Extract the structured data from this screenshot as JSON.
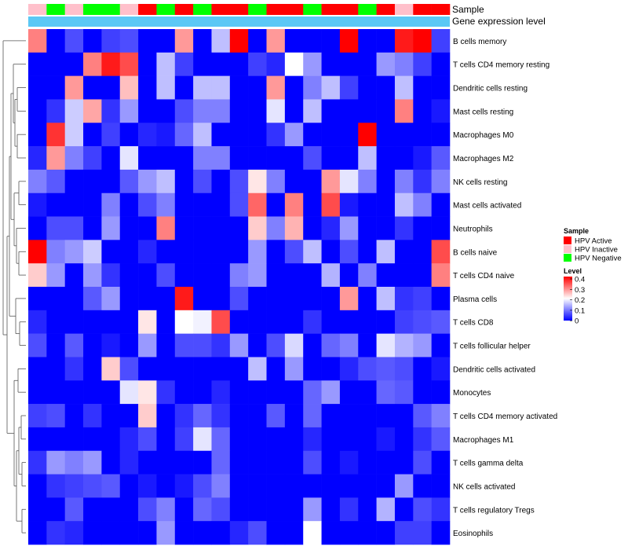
{
  "chart_data": {
    "type": "heatmap",
    "value_scale": {
      "min": 0,
      "mid": 0.2,
      "max": 0.4,
      "low_color": "#0000ff",
      "mid_color": "#ffffff",
      "high_color": "#ff0000"
    },
    "annotation_labels": [
      "Sample",
      "Gene expression level"
    ],
    "legend": {
      "sample_title": "Sample",
      "sample_items": [
        {
          "label": "HPV Active",
          "color": "#ff0000"
        },
        {
          "label": "HPV Inactive",
          "color": "#ffc0cb"
        },
        {
          "label": "HPV Negative",
          "color": "#00ff00"
        }
      ],
      "level_title": "Level",
      "level_ticks": [
        "0.4",
        "0.3",
        "0.2",
        "0.1",
        "0"
      ]
    },
    "sample_groups": [
      "HPV Inactive",
      "HPV Negative",
      "HPV Inactive",
      "HPV Negative",
      "HPV Negative",
      "HPV Inactive",
      "HPV Active",
      "HPV Negative",
      "HPV Active",
      "HPV Negative",
      "HPV Active",
      "HPV Active",
      "HPV Negative",
      "HPV Active",
      "HPV Active",
      "HPV Negative",
      "HPV Active",
      "HPV Active",
      "HPV Negative",
      "HPV Active",
      "HPV Inactive",
      "HPV Active",
      "HPV Active"
    ],
    "gene_expression_color": "#5bc8f5",
    "rows": [
      {
        "name": "B cells memory",
        "values": [
          0.3,
          0.0,
          0.06,
          0.0,
          0.05,
          0.06,
          0.0,
          0.0,
          0.28,
          0.0,
          0.15,
          0.4,
          0.0,
          0.28,
          0.0,
          0.0,
          0.0,
          0.4,
          0.0,
          0.0,
          0.38,
          0.4,
          0.05
        ]
      },
      {
        "name": "T cells CD4 memory resting",
        "values": [
          0.0,
          0.0,
          0.0,
          0.3,
          0.38,
          0.34,
          0.0,
          0.15,
          0.05,
          0.0,
          0.0,
          0.0,
          0.05,
          0.03,
          0.2,
          0.12,
          0.0,
          0.0,
          0.0,
          0.12,
          0.1,
          0.05,
          0.0
        ]
      },
      {
        "name": "Dendritic cells resting",
        "values": [
          0.0,
          0.0,
          0.28,
          0.0,
          0.0,
          0.25,
          0.0,
          0.15,
          0.0,
          0.15,
          0.15,
          0.0,
          0.0,
          0.28,
          0.0,
          0.1,
          0.15,
          0.05,
          0.0,
          0.0,
          0.15,
          0.0,
          0.0
        ]
      },
      {
        "name": "Mast cells resting",
        "values": [
          0.0,
          0.04,
          0.16,
          0.27,
          0.04,
          0.12,
          0.0,
          0.0,
          0.06,
          0.1,
          0.1,
          0.0,
          0.0,
          0.18,
          0.0,
          0.15,
          0.0,
          0.0,
          0.0,
          0.0,
          0.3,
          0.0,
          0.02
        ]
      },
      {
        "name": "Macrophages M0",
        "values": [
          0.0,
          0.36,
          0.16,
          0.0,
          0.05,
          0.0,
          0.03,
          0.02,
          0.08,
          0.15,
          0.0,
          0.0,
          0.0,
          0.04,
          0.12,
          0.0,
          0.0,
          0.0,
          0.4,
          0.0,
          0.0,
          0.0,
          0.0
        ]
      },
      {
        "name": "Macrophages M2",
        "values": [
          0.03,
          0.28,
          0.1,
          0.05,
          0.0,
          0.18,
          0.0,
          0.0,
          0.0,
          0.1,
          0.1,
          0.0,
          0.0,
          0.0,
          0.0,
          0.06,
          0.0,
          0.0,
          0.15,
          0.0,
          0.0,
          0.02,
          0.07
        ]
      },
      {
        "name": "NK cells resting",
        "values": [
          0.1,
          0.07,
          0.0,
          0.0,
          0.0,
          0.07,
          0.12,
          0.15,
          0.0,
          0.06,
          0.0,
          0.06,
          0.22,
          0.1,
          0.0,
          0.0,
          0.28,
          0.18,
          0.1,
          0.0,
          0.1,
          0.04,
          0.1
        ]
      },
      {
        "name": "Mast cells activated",
        "values": [
          0.02,
          0.0,
          0.0,
          0.0,
          0.1,
          0.0,
          0.06,
          0.1,
          0.0,
          0.0,
          0.0,
          0.06,
          0.32,
          0.0,
          0.3,
          0.0,
          0.34,
          0.02,
          0.0,
          0.0,
          0.15,
          0.1,
          0.0
        ]
      },
      {
        "name": "Neutrophils",
        "values": [
          0.0,
          0.06,
          0.06,
          0.0,
          0.12,
          0.0,
          0.0,
          0.3,
          0.0,
          0.0,
          0.0,
          0.0,
          0.24,
          0.1,
          0.26,
          0.0,
          0.03,
          0.12,
          0.0,
          0.0,
          0.04,
          0.0,
          0.0
        ]
      },
      {
        "name": "B cells naive",
        "values": [
          0.4,
          0.1,
          0.12,
          0.16,
          0.0,
          0.0,
          0.03,
          0.0,
          0.0,
          0.0,
          0.0,
          0.0,
          0.12,
          0.0,
          0.06,
          0.15,
          0.0,
          0.06,
          0.0,
          0.15,
          0.0,
          0.0,
          0.34
        ]
      },
      {
        "name": "T cells CD4 naive",
        "values": [
          0.24,
          0.12,
          0.0,
          0.12,
          0.04,
          0.0,
          0.0,
          0.06,
          0.0,
          0.0,
          0.0,
          0.1,
          0.12,
          0.0,
          0.0,
          0.0,
          0.14,
          0.0,
          0.1,
          0.0,
          0.0,
          0.0,
          0.3
        ]
      },
      {
        "name": "Plasma cells",
        "values": [
          0.0,
          0.0,
          0.0,
          0.07,
          0.12,
          0.0,
          0.0,
          0.0,
          0.38,
          0.0,
          0.0,
          0.06,
          0.0,
          0.0,
          0.0,
          0.0,
          0.0,
          0.28,
          0.0,
          0.15,
          0.04,
          0.05,
          0.0
        ]
      },
      {
        "name": "T cells CD8",
        "values": [
          0.03,
          0.0,
          0.0,
          0.0,
          0.0,
          0.0,
          0.22,
          0.0,
          0.2,
          0.19,
          0.34,
          0.0,
          0.0,
          0.0,
          0.0,
          0.04,
          0.0,
          0.0,
          0.0,
          0.0,
          0.05,
          0.06,
          0.07
        ]
      },
      {
        "name": "T cells follicular helper",
        "values": [
          0.06,
          0.0,
          0.07,
          0.0,
          0.02,
          0.0,
          0.12,
          0.0,
          0.06,
          0.06,
          0.04,
          0.12,
          0.0,
          0.06,
          0.17,
          0.0,
          0.08,
          0.1,
          0.0,
          0.18,
          0.14,
          0.12,
          0.0
        ]
      },
      {
        "name": "Dendritic cells activated",
        "values": [
          0.0,
          0.0,
          0.04,
          0.0,
          0.24,
          0.06,
          0.0,
          0.0,
          0.0,
          0.0,
          0.0,
          0.0,
          0.15,
          0.0,
          0.12,
          0.0,
          0.0,
          0.03,
          0.06,
          0.07,
          0.06,
          0.0,
          0.02
        ]
      },
      {
        "name": "Monocytes",
        "values": [
          0.0,
          0.0,
          0.0,
          0.0,
          0.0,
          0.18,
          0.22,
          0.04,
          0.0,
          0.0,
          0.03,
          0.0,
          0.0,
          0.0,
          0.0,
          0.08,
          0.12,
          0.0,
          0.0,
          0.08,
          0.07,
          0.0,
          0.0
        ]
      },
      {
        "name": "T cells CD4 memory activated",
        "values": [
          0.05,
          0.06,
          0.0,
          0.04,
          0.0,
          0.0,
          0.24,
          0.0,
          0.04,
          0.08,
          0.04,
          0.0,
          0.0,
          0.07,
          0.0,
          0.08,
          0.0,
          0.0,
          0.0,
          0.0,
          0.0,
          0.07,
          0.1
        ]
      },
      {
        "name": "Macrophages M1",
        "values": [
          0.0,
          0.0,
          0.0,
          0.0,
          0.0,
          0.03,
          0.06,
          0.0,
          0.05,
          0.18,
          0.08,
          0.0,
          0.0,
          0.0,
          0.0,
          0.03,
          0.0,
          0.0,
          0.0,
          0.02,
          0.0,
          0.04,
          0.07
        ]
      },
      {
        "name": "T cells gamma delta",
        "values": [
          0.04,
          0.12,
          0.1,
          0.12,
          0.0,
          0.03,
          0.0,
          0.0,
          0.0,
          0.0,
          0.08,
          0.0,
          0.0,
          0.0,
          0.0,
          0.06,
          0.0,
          0.02,
          0.0,
          0.0,
          0.0,
          0.06,
          0.0
        ]
      },
      {
        "name": "NK cells activated",
        "values": [
          0.0,
          0.04,
          0.05,
          0.06,
          0.07,
          0.0,
          0.02,
          0.0,
          0.02,
          0.06,
          0.1,
          0.0,
          0.0,
          0.0,
          0.0,
          0.0,
          0.0,
          0.0,
          0.0,
          0.0,
          0.12,
          0.0,
          0.0
        ]
      },
      {
        "name": "T cells regulatory  Tregs",
        "values": [
          0.0,
          0.0,
          0.07,
          0.0,
          0.0,
          0.0,
          0.06,
          0.1,
          0.0,
          0.08,
          0.06,
          0.0,
          0.0,
          0.0,
          0.0,
          0.12,
          0.0,
          0.04,
          0.0,
          0.14,
          0.0,
          0.06,
          0.04
        ]
      },
      {
        "name": "Eosinophils",
        "values": [
          0.0,
          0.04,
          0.03,
          0.0,
          0.0,
          0.0,
          0.0,
          0.12,
          0.0,
          0.0,
          0.0,
          0.03,
          0.06,
          0.0,
          0.0,
          0.2,
          0.0,
          0.0,
          0.0,
          0.0,
          0.05,
          0.05,
          0.0
        ]
      }
    ]
  }
}
